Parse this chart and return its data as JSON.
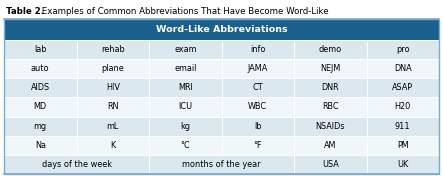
{
  "title_bold": "Table 2.",
  "title_rest": " Examples of Common Abbreviations That Have Become Word-Like",
  "header": "Word-Like Abbreviations",
  "header_bg": "#1b5f8c",
  "header_text_color": "#ffffff",
  "row_bg_light": "#dce8f0",
  "row_bg_white": "#f0f6fa",
  "border_color": "#7aaccc",
  "text_color": "#000000",
  "rows": [
    [
      "lab",
      "rehab",
      "exam",
      "info",
      "demo",
      "pro"
    ],
    [
      "auto",
      "plane",
      "email",
      "JAMA",
      "NEJM",
      "DNA"
    ],
    [
      "AIDS",
      "HIV",
      "MRI",
      "CT",
      "DNR",
      "ASAP"
    ],
    [
      "MD",
      "RN",
      "ICU",
      "WBC",
      "RBC",
      "H20"
    ],
    [
      "mg",
      "mL",
      "kg",
      "lb",
      "NSAIDs",
      "911"
    ],
    [
      "Na",
      "K",
      "°C",
      "°F",
      "AM",
      "PM"
    ],
    [
      "days of the week",
      "months of the year",
      "USA",
      "UK"
    ]
  ],
  "fig_width": 4.43,
  "fig_height": 1.78,
  "dpi": 100
}
